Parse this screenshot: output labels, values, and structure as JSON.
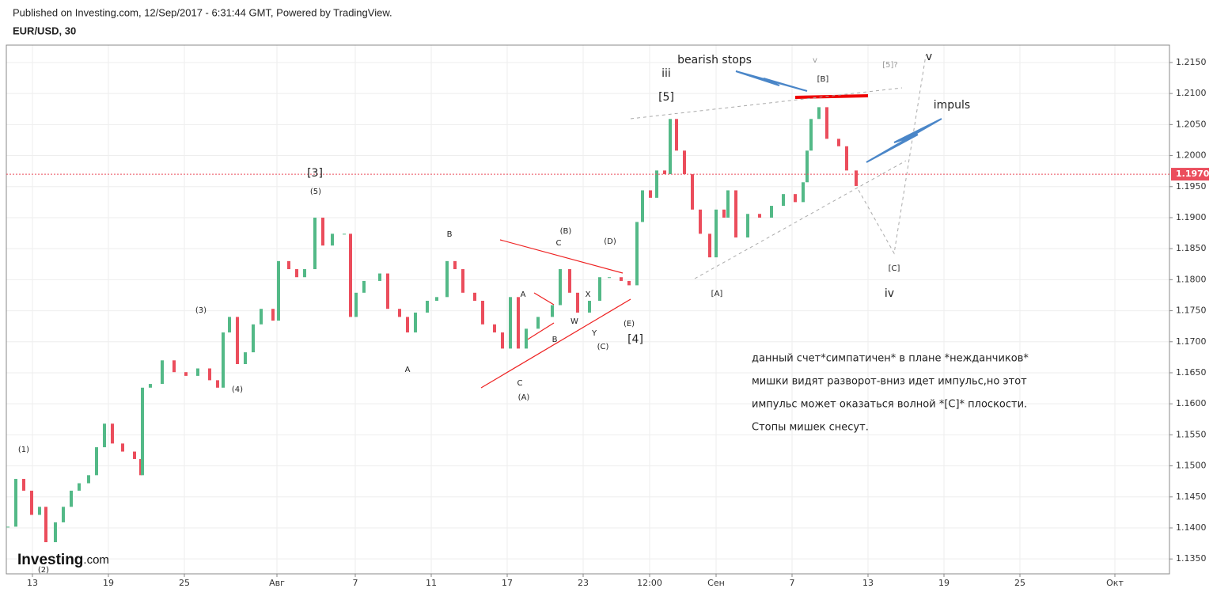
{
  "header": {
    "published": "Published on Investing.com, 12/Sep/2017 - 6:31:44 GMT, Powered by TradingView.",
    "symbol": "EUR/USD, 30"
  },
  "logo": {
    "brand": "Investing",
    "suffix": ".com"
  },
  "chart_data": {
    "type": "candlestick",
    "x": [
      -1.29,
      -0.875,
      -0.458,
      -0.042,
      0.375,
      0.708,
      1.208,
      1.625,
      2.042,
      2.458,
      2.958,
      3.375,
      3.792,
      4.208,
      4.75,
      5.375,
      5.708,
      5.792,
      6.208,
      6.833,
      7.458,
      8.083,
      8.708,
      9.333,
      9.75,
      10.042,
      10.375,
      10.792,
      11.208,
      11.625,
      12.042,
      12.667,
      12.958,
      13.5,
      13.917,
      14.333,
      14.875,
      15.292,
      15.792,
      16.417,
      16.75,
      17.042,
      17.458,
      18.292,
      18.708,
      19.333,
      19.75,
      20.167,
      20.792,
      21.292,
      21.833,
      22.25,
      22.667,
      23.292,
      23.708,
      24.333,
      24.75,
      25.167,
      25.583,
      26.0,
      26.625,
      27.375,
      27.792,
      28.292,
      28.708,
      29.333,
      29.875,
      30.375,
      31.0,
      31.417,
      31.833,
      32.125,
      32.542,
      32.875,
      33.292,
      33.583,
      33.917,
      34.333,
      34.75,
      35.167,
      35.667,
      36.0,
      36.417,
      36.625,
      37.042,
      37.667,
      38.292,
      38.917,
      39.542,
      40.167,
      40.583,
      40.792,
      41.0,
      41.417,
      41.833,
      42.458,
      42.875,
      43.375
    ],
    "values": [
      1.1402,
      1.1479,
      1.146,
      1.1421,
      1.1434,
      1.1377,
      1.1409,
      1.1434,
      1.146,
      1.1472,
      1.1485,
      1.153,
      1.1568,
      1.1536,
      1.1523,
      1.1511,
      1.1485,
      1.1626,
      1.1632,
      1.167,
      1.1651,
      1.1645,
      1.1657,
      1.1638,
      1.1626,
      1.1715,
      1.174,
      1.1664,
      1.1683,
      1.1728,
      1.1753,
      1.1734,
      1.183,
      1.1817,
      1.1804,
      1.1817,
      1.19,
      1.1855,
      1.1874,
      1.1874,
      1.174,
      1.1779,
      1.1798,
      1.181,
      1.1753,
      1.174,
      1.1715,
      1.1747,
      1.1766,
      1.1772,
      1.183,
      1.1817,
      1.1779,
      1.1766,
      1.1728,
      1.1715,
      1.1689,
      1.1772,
      1.1689,
      1.1721,
      1.174,
      1.1759,
      1.1817,
      1.1779,
      1.1747,
      1.1766,
      1.1804,
      1.1804,
      1.1798,
      1.1791,
      1.1893,
      1.1944,
      1.1932,
      1.1976,
      1.197,
      1.2059,
      1.2008,
      1.197,
      1.1913,
      1.1874,
      1.1836,
      1.1913,
      1.19,
      1.1944,
      1.1868,
      1.1906,
      1.19,
      1.1919,
      1.1938,
      1.1925,
      1.1957,
      1.2008,
      1.2059,
      1.2078,
      1.2027,
      1.2015,
      1.1976,
      1.1951
    ],
    "up_color": "#53b987",
    "down_color": "#eb4d5c",
    "xlim": [
      -1.375,
      59.875
    ],
    "xticks": [
      {
        "value": 0,
        "label": "13"
      },
      {
        "value": 4,
        "label": "19"
      },
      {
        "value": 8,
        "label": "25"
      },
      {
        "value": 12.875,
        "label": "Авг"
      },
      {
        "value": 17,
        "label": "7"
      },
      {
        "value": 21,
        "label": "11"
      },
      {
        "value": 25,
        "label": "17"
      },
      {
        "value": 29,
        "label": "23"
      },
      {
        "value": 32.5,
        "label": "12:00"
      },
      {
        "value": 36,
        "label": "Сен"
      },
      {
        "value": 40,
        "label": "7"
      },
      {
        "value": 44,
        "label": "13"
      },
      {
        "value": 48,
        "label": "19"
      },
      {
        "value": 52,
        "label": "25"
      },
      {
        "value": 57,
        "label": "Окт"
      }
    ],
    "ylim": [
      1.1326,
      1.2178
    ],
    "yticks": [
      {
        "value": 1.135,
        "label": "1.1350"
      },
      {
        "value": 1.14,
        "label": "1.1400"
      },
      {
        "value": 1.145,
        "label": "1.1450"
      },
      {
        "value": 1.15,
        "label": "1.1500"
      },
      {
        "value": 1.155,
        "label": "1.1550"
      },
      {
        "value": 1.16,
        "label": "1.1600"
      },
      {
        "value": 1.165,
        "label": "1.1650"
      },
      {
        "value": 1.17,
        "label": "1.1700"
      },
      {
        "value": 1.175,
        "label": "1.1750"
      },
      {
        "value": 1.18,
        "label": "1.1800"
      },
      {
        "value": 1.185,
        "label": "1.1850"
      },
      {
        "value": 1.19,
        "label": "1.1900"
      },
      {
        "value": 1.195,
        "label": "1.1950"
      },
      {
        "value": 1.2,
        "label": "1.2000"
      },
      {
        "value": 1.205,
        "label": "1.2050"
      },
      {
        "value": 1.21,
        "label": "1.2100"
      },
      {
        "value": 1.215,
        "label": "1.2150"
      }
    ],
    "last_price": {
      "value": 1.197,
      "label": "1.1970"
    },
    "grid": true,
    "annotations": [
      "(1)",
      "(2)",
      "(3)",
      "(4)",
      "[3]",
      "(5)",
      "A",
      "B",
      "C",
      "(A)",
      "A",
      "B",
      "W",
      "X",
      "Y",
      "(C)",
      "C",
      "(B)",
      "(D)",
      "(E)",
      "[4]",
      "[5]",
      "iii",
      "bearish stops",
      "v",
      "[B]",
      "[5]?",
      "v",
      "impuls",
      "[C]",
      "iv",
      "[A]"
    ],
    "comment": [
      "данный счет*симпатичен* в плане *нежданчиков*",
      "мишки видят разворот-вниз идет импульс,но этот",
      "импульс может оказаться волной *[C]* плоскости.",
      "Стопы мишек снесут."
    ]
  }
}
